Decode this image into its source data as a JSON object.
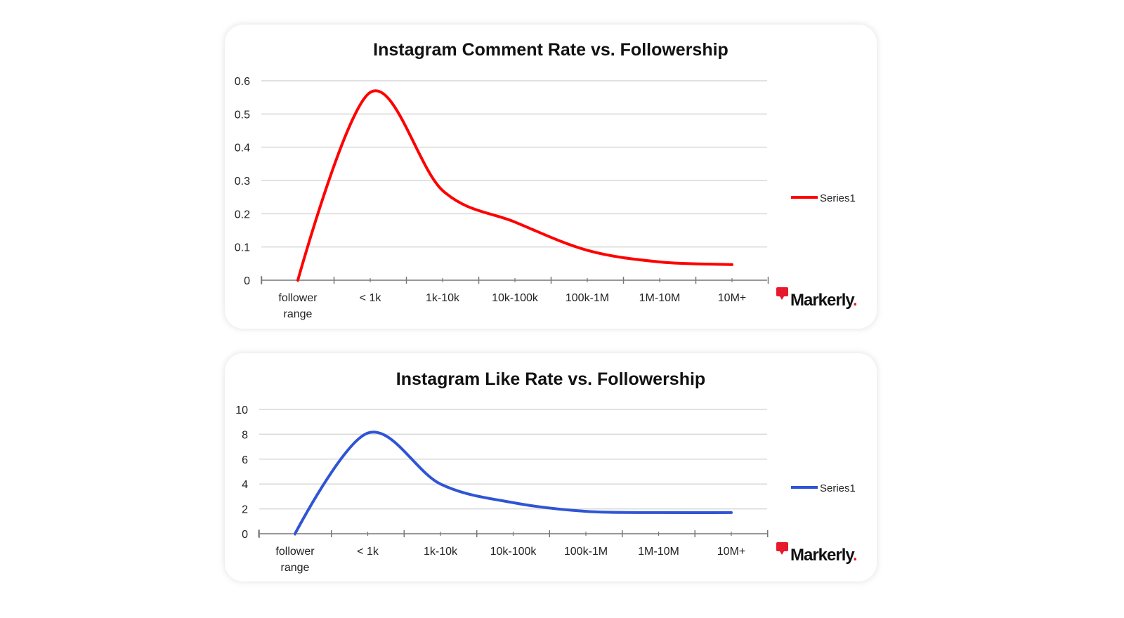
{
  "chart_data": [
    {
      "type": "line",
      "title": "Instagram Comment Rate vs. Followership",
      "categories": [
        "follower range",
        "< 1k",
        "1k-10k",
        "10k-100k",
        "100k-1M",
        "1M-10M",
        "10M+"
      ],
      "series": [
        {
          "name": "Series1",
          "values": [
            0,
            0.565,
            0.27,
            0.175,
            0.09,
            0.055,
            0.047
          ],
          "color": "#ff0000"
        }
      ],
      "ylim": [
        0,
        0.6
      ],
      "yticks": [
        "0",
        "0.1",
        "0.2",
        "0.3",
        "0.4",
        "0.5",
        "0.6"
      ],
      "grid": true,
      "legend": "right",
      "smooth": true,
      "logo": "Markerly."
    },
    {
      "type": "line",
      "title": "Instagram Like Rate vs. Followership",
      "categories": [
        "follower range",
        "< 1k",
        "1k-10k",
        "10k-100k",
        "100k-1M",
        "1M-10M",
        "10M+"
      ],
      "series": [
        {
          "name": "Series1",
          "values": [
            0,
            8.1,
            4.0,
            2.5,
            1.8,
            1.7,
            1.7
          ],
          "color": "#2f55d4"
        }
      ],
      "ylim": [
        0,
        10
      ],
      "yticks": [
        "0",
        "2",
        "4",
        "6",
        "8",
        "10"
      ],
      "grid": true,
      "legend": "right",
      "smooth": true,
      "logo": "Markerly."
    }
  ]
}
